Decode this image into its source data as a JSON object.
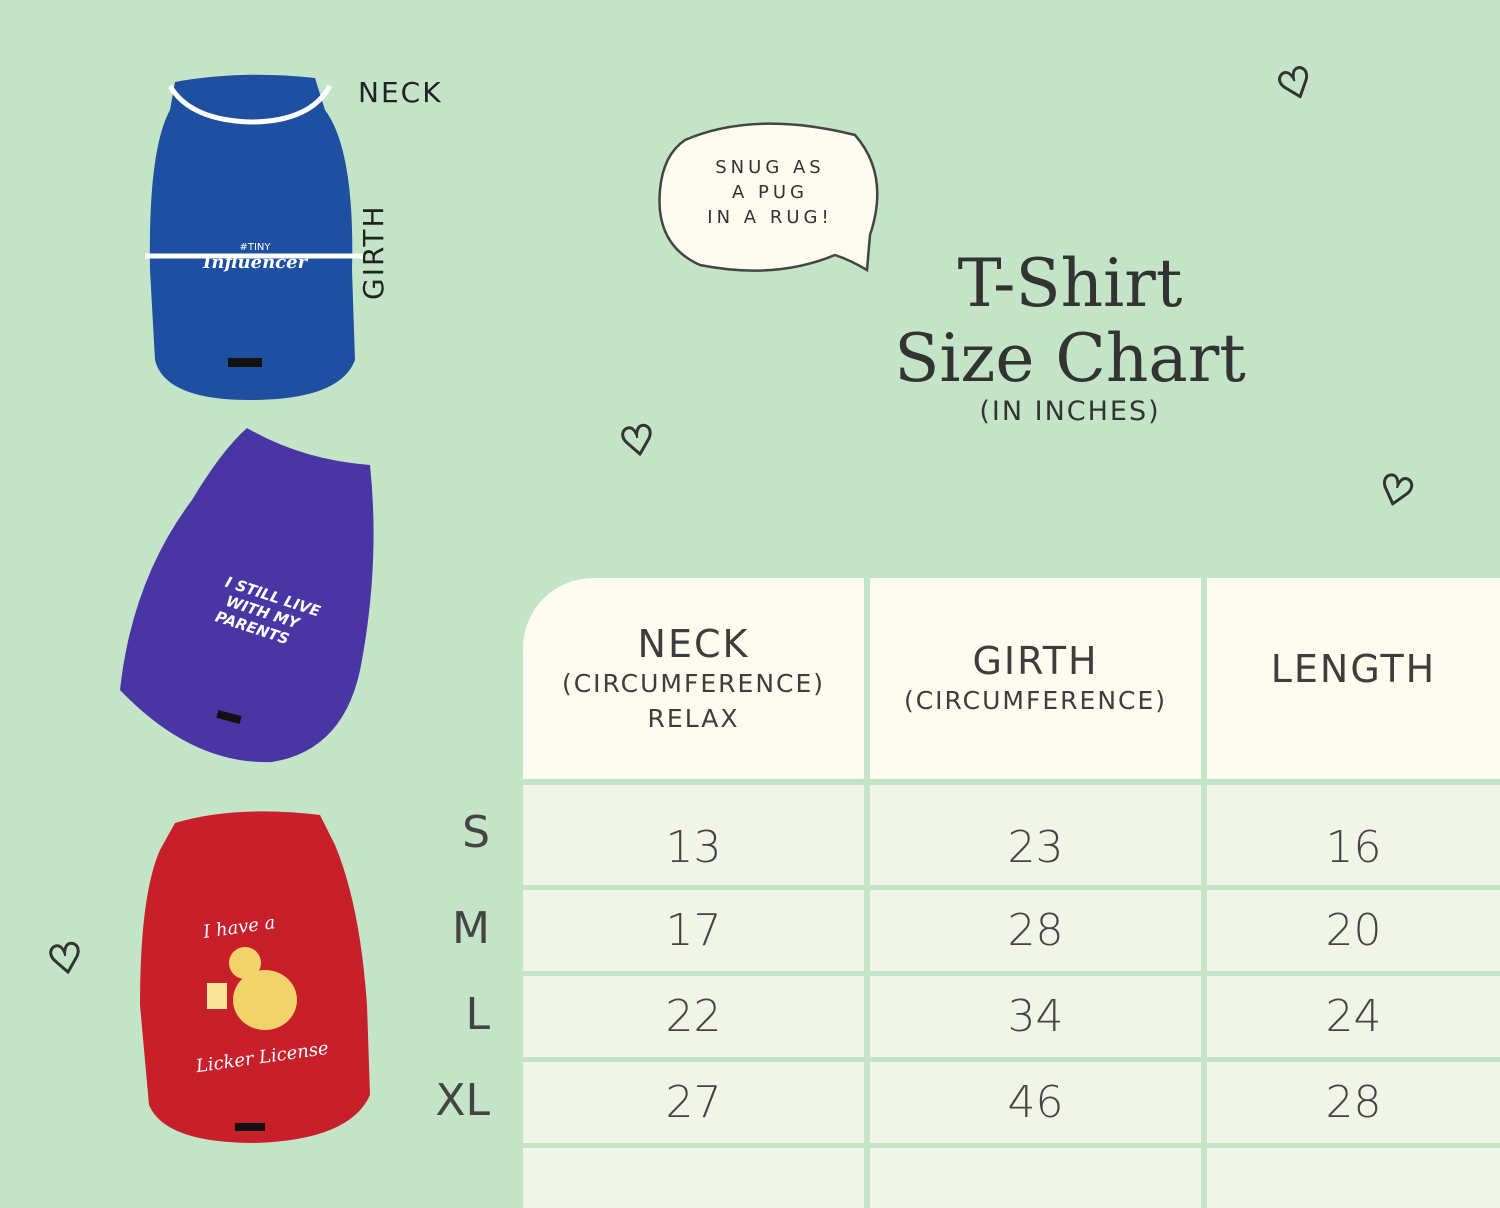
{
  "diagram_labels": {
    "neck": "NECK",
    "girth": "GIRTH"
  },
  "bubble": {
    "lines": [
      "SNUG AS",
      "A PUG",
      "IN A RUG!"
    ]
  },
  "title": {
    "line1": "T-Shirt",
    "line2": "Size Chart",
    "unit": "(IN INCHES)"
  },
  "shirts": [
    {
      "color": "#1f4fa0",
      "print": [
        "#TINY",
        "Influencer"
      ]
    },
    {
      "color": "#4a35a5",
      "print": [
        "I STILL LIVE",
        "WITH MY",
        "PARENTS"
      ]
    },
    {
      "color": "#c8202a",
      "print": [
        "I have a",
        "Licker License"
      ]
    }
  ],
  "table": {
    "headers": [
      {
        "main": "NECK",
        "sub": [
          "(CIRCUMFERENCE)",
          "RELAX"
        ]
      },
      {
        "main": "GIRTH",
        "sub": [
          "(CIRCUMFERENCE)"
        ]
      },
      {
        "main": "LENGTH",
        "sub": []
      }
    ],
    "rows": [
      {
        "size": "S",
        "values": [
          "13",
          "23",
          "16"
        ]
      },
      {
        "size": "M",
        "values": [
          "17",
          "28",
          "20"
        ]
      },
      {
        "size": "L",
        "values": [
          "22",
          "34",
          "24"
        ]
      },
      {
        "size": "XL",
        "values": [
          "27",
          "46",
          "28"
        ]
      }
    ]
  },
  "colors": {
    "background": "#c4e4c7",
    "header_cell": "#fdfbf0",
    "data_cell": "#f1f5e8"
  }
}
